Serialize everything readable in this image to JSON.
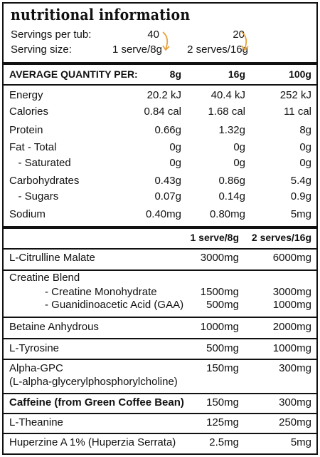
{
  "title": "nutritional information",
  "servings": {
    "per_tub_label": "Servings per tub:",
    "per_tub_1": "40",
    "per_tub_2": "20",
    "size_label": "Serving size:",
    "size_1": "1 serve/8g",
    "size_2": "2 serves/16g",
    "arrow_color": "#e8a33b"
  },
  "nutrition_header": {
    "label": "AVERAGE QUANTITY PER:",
    "col_8g": "8g",
    "col_16g": "16g",
    "col_100g": "100g"
  },
  "nutrition_rows": [
    {
      "name": "Energy",
      "g8": "20.2 kJ",
      "g16": "40.4 kJ",
      "g100": "252 kJ"
    },
    {
      "name": "Calories",
      "g8": "0.84 cal",
      "g16": "1.68 cal",
      "g100": "11 cal"
    },
    {
      "name": "Protein",
      "g8": "0.66g",
      "g16": "1.32g",
      "g100": "8g"
    },
    {
      "name": "Fat - Total",
      "g8": "0g",
      "g16": "0g",
      "g100": "0g"
    },
    {
      "name": "   - Saturated",
      "g8": "0g",
      "g16": "0g",
      "g100": "0g"
    },
    {
      "name": "Carbohydrates",
      "g8": "0.43g",
      "g16": "0.86g",
      "g100": "5.4g"
    },
    {
      "name": "   - Sugars",
      "g8": "0.07g",
      "g16": "0.14g",
      "g100": "0.9g"
    },
    {
      "name": "Sodium",
      "g8": "0.40mg",
      "g16": "0.80mg",
      "g100": "5mg"
    }
  ],
  "supplement_header": {
    "col_1": "1 serve/8g",
    "col_2": "2 serves/16g"
  },
  "supplements": {
    "citrulline": {
      "name": "L-Citrulline Malate",
      "s1": "3000mg",
      "s2": "6000mg"
    },
    "creatine_blend": {
      "name": "Creatine Blend"
    },
    "creatine_mono": {
      "name": "- Creatine Monohydrate",
      "s1": "1500mg",
      "s2": "3000mg"
    },
    "gaa": {
      "name": "- Guanidinoacetic Acid (GAA)",
      "s1": "500mg",
      "s2": "1000mg"
    },
    "betaine": {
      "name": "Betaine Anhydrous",
      "s1": "1000mg",
      "s2": "2000mg"
    },
    "tyrosine": {
      "name": "L-Tyrosine",
      "s1": "500mg",
      "s2": "1000mg"
    },
    "alpha_gpc": {
      "name": "Alpha-GPC",
      "name2": "(L-alpha-glycerylphosphorylcholine)",
      "s1": "150mg",
      "s2": "300mg"
    },
    "caffeine": {
      "name": "Caffeine (from Green Coffee Bean)",
      "s1": "150mg",
      "s2": "300mg"
    },
    "theanine": {
      "name": "L-Theanine",
      "s1": "125mg",
      "s2": "250mg"
    },
    "huperzine": {
      "name": "Huperzine A 1% (Huperzia Serrata)",
      "s1": "2.5mg",
      "s2": "5mg"
    }
  }
}
